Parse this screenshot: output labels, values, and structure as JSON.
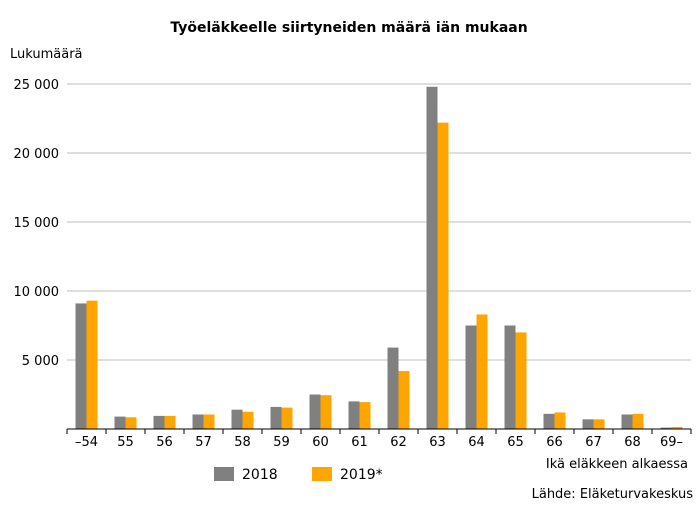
{
  "chart_data": {
    "type": "bar",
    "title": "Työeläkkeelle siirtyneiden määrä iän mukaan",
    "ylabel": "Lukumäärä",
    "xlabel": "Ikä eläkkeen alkaessa",
    "source": "Lähde: Eläketurvakeskus",
    "categories": [
      "–54",
      "55",
      "56",
      "57",
      "58",
      "59",
      "60",
      "61",
      "62",
      "63",
      "64",
      "65",
      "66",
      "67",
      "68",
      "69–"
    ],
    "series": [
      {
        "name": "2018",
        "color": "#808080",
        "values": [
          9100,
          900,
          950,
          1050,
          1400,
          1600,
          2500,
          2000,
          5900,
          24800,
          7500,
          7500,
          1100,
          700,
          1050,
          100
        ]
      },
      {
        "name": "2019*",
        "color": "#FFA500",
        "values": [
          9300,
          850,
          950,
          1050,
          1250,
          1550,
          2450,
          1950,
          4200,
          22200,
          8300,
          7000,
          1200,
          700,
          1100,
          150
        ]
      }
    ],
    "ylim": [
      0,
      25000
    ],
    "yticks": [
      0,
      5000,
      10000,
      15000,
      20000,
      25000
    ],
    "ytick_labels": [
      "",
      "5 000",
      "10 000",
      "15 000",
      "20 000",
      "25 000"
    ],
    "grid": true,
    "legend_position": "bottom"
  }
}
